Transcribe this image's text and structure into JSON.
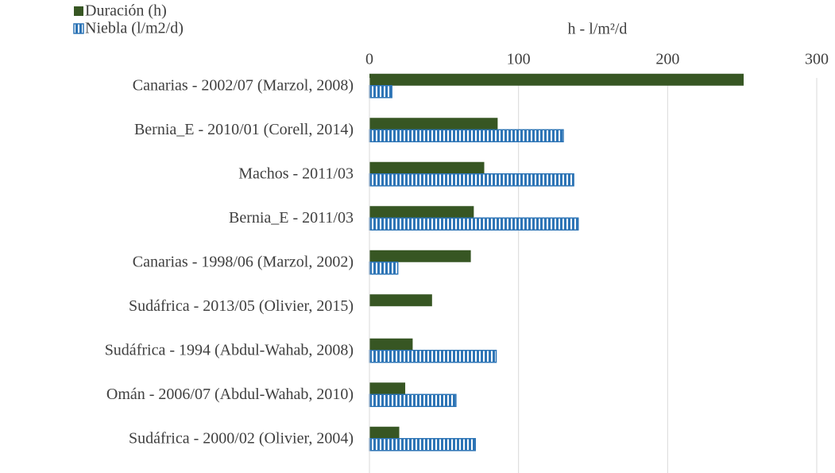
{
  "chart_data": {
    "type": "hbar",
    "xlabel": "h  -  l/m²/d",
    "categories": [
      "Canarias - 2002/07 (Marzol, 2008)",
      "Bernia_E - 2010/01 (Corell, 2014)",
      "Machos - 2011/03",
      "Bernia_E - 2011/03",
      "Canarias - 1998/06 (Marzol, 2002)",
      "Sudáfrica - 2013/05 (Olivier, 2015)",
      "Sudáfrica  - 1994 (Abdul-Wahab, 2008)",
      "Omán - 2006/07 (Abdul-Wahab, 2010)",
      "Sudáfrica - 2000/02 (Olivier, 2004)"
    ],
    "series": [
      {
        "name": "Duración (h)",
        "color": "#375623",
        "pattern": "solid",
        "values": [
          251,
          86,
          77,
          70,
          68,
          42,
          29,
          24,
          20
        ]
      },
      {
        "name": "Niebla (l/m2/d)",
        "color": "#2e75b6",
        "pattern": "stripes",
        "values": [
          15,
          130,
          137,
          140,
          19,
          null,
          85,
          58,
          71
        ]
      }
    ],
    "xlim": [
      0,
      300
    ],
    "xticks": [
      0,
      100,
      200,
      300
    ],
    "grid": true,
    "legend": "top-left"
  }
}
